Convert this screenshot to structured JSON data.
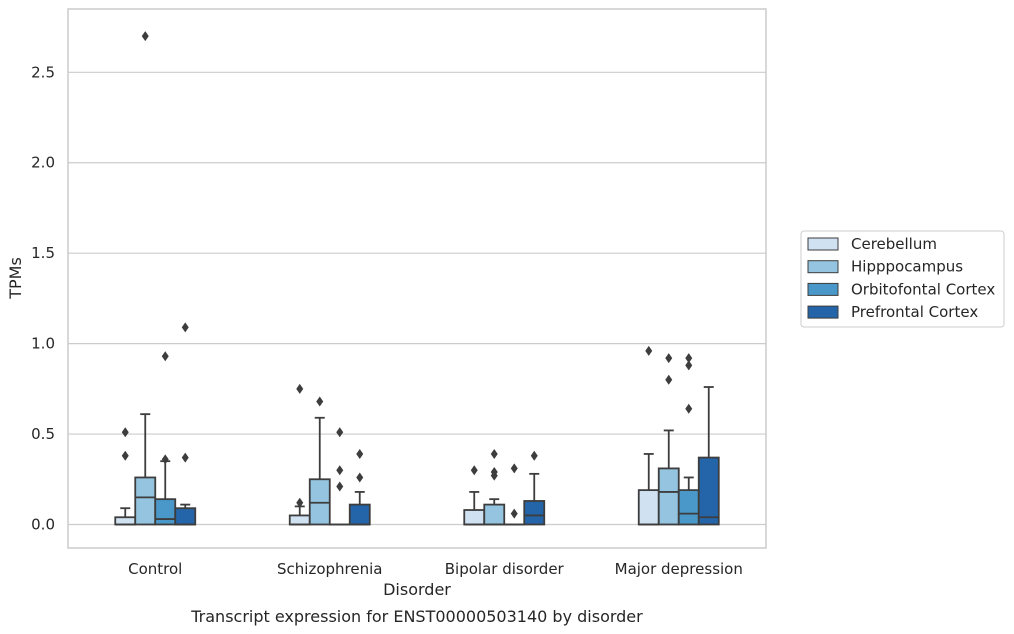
{
  "chart_data": {
    "type": "box",
    "title": "",
    "caption": "Transcript expression for ENST00000503140 by disorder",
    "xlabel": "Disorder",
    "ylabel": "TPMs",
    "ylim": [
      -0.13,
      2.85
    ],
    "yticks": [
      "0.0",
      "0.5",
      "1.0",
      "1.5",
      "2.0",
      "2.5"
    ],
    "categories": [
      "Control",
      "Schizophrenia",
      "Bipolar disorder",
      "Major depression"
    ],
    "grid": "horizontal",
    "legend_position": "right",
    "series": [
      {
        "name": "Cerebellum",
        "color": "#d0e1f2",
        "boxes": [
          {
            "q1": 0.0,
            "median": 0.0,
            "q3": 0.04,
            "whisker_low": 0.0,
            "whisker_high": 0.09,
            "outliers": [
              0.38,
              0.51
            ]
          },
          {
            "q1": 0.0,
            "median": 0.0,
            "q3": 0.05,
            "whisker_low": 0.0,
            "whisker_high": 0.1,
            "outliers": [
              0.12,
              0.75
            ]
          },
          {
            "q1": 0.0,
            "median": 0.0,
            "q3": 0.08,
            "whisker_low": 0.0,
            "whisker_high": 0.18,
            "outliers": [
              0.3
            ]
          },
          {
            "q1": 0.0,
            "median": 0.0,
            "q3": 0.19,
            "whisker_low": 0.0,
            "whisker_high": 0.39,
            "outliers": [
              0.96
            ]
          }
        ]
      },
      {
        "name": "Hipppocampus",
        "color": "#94c4df",
        "boxes": [
          {
            "q1": 0.0,
            "median": 0.15,
            "q3": 0.26,
            "whisker_low": 0.0,
            "whisker_high": 0.61,
            "outliers": [
              2.7
            ]
          },
          {
            "q1": 0.0,
            "median": 0.12,
            "q3": 0.25,
            "whisker_low": 0.0,
            "whisker_high": 0.59,
            "outliers": [
              0.68
            ]
          },
          {
            "q1": 0.0,
            "median": 0.0,
            "q3": 0.11,
            "whisker_low": 0.0,
            "whisker_high": 0.14,
            "outliers": [
              0.27,
              0.29,
              0.39
            ]
          },
          {
            "q1": 0.0,
            "median": 0.18,
            "q3": 0.31,
            "whisker_low": 0.0,
            "whisker_high": 0.52,
            "outliers": [
              0.8,
              0.92
            ]
          }
        ]
      },
      {
        "name": "Orbitofontal Cortex",
        "color": "#4a98c9",
        "boxes": [
          {
            "q1": 0.0,
            "median": 0.03,
            "q3": 0.14,
            "whisker_low": 0.0,
            "whisker_high": 0.35,
            "outliers": [
              0.36,
              0.93
            ]
          },
          {
            "q1": 0.0,
            "median": 0.0,
            "q3": 0.0,
            "whisker_low": 0.0,
            "whisker_high": 0.0,
            "outliers": [
              0.21,
              0.3,
              0.51
            ]
          },
          {
            "q1": 0.0,
            "median": 0.0,
            "q3": 0.0,
            "whisker_low": 0.0,
            "whisker_high": 0.0,
            "outliers": [
              0.06,
              0.31
            ]
          },
          {
            "q1": 0.0,
            "median": 0.06,
            "q3": 0.19,
            "whisker_low": 0.0,
            "whisker_high": 0.26,
            "outliers": [
              0.64,
              0.88,
              0.92
            ]
          }
        ]
      },
      {
        "name": "Prefrontal Cortex",
        "color": "#2465a9",
        "boxes": [
          {
            "q1": 0.0,
            "median": 0.0,
            "q3": 0.09,
            "whisker_low": 0.0,
            "whisker_high": 0.11,
            "outliers": [
              0.37,
              1.09
            ]
          },
          {
            "q1": 0.0,
            "median": 0.0,
            "q3": 0.11,
            "whisker_low": 0.0,
            "whisker_high": 0.18,
            "outliers": [
              0.26,
              0.39
            ]
          },
          {
            "q1": 0.0,
            "median": 0.05,
            "q3": 0.13,
            "whisker_low": 0.0,
            "whisker_high": 0.28,
            "outliers": [
              0.38
            ]
          },
          {
            "q1": 0.0,
            "median": 0.04,
            "q3": 0.37,
            "whisker_low": 0.0,
            "whisker_high": 0.76,
            "outliers": []
          }
        ]
      }
    ]
  }
}
